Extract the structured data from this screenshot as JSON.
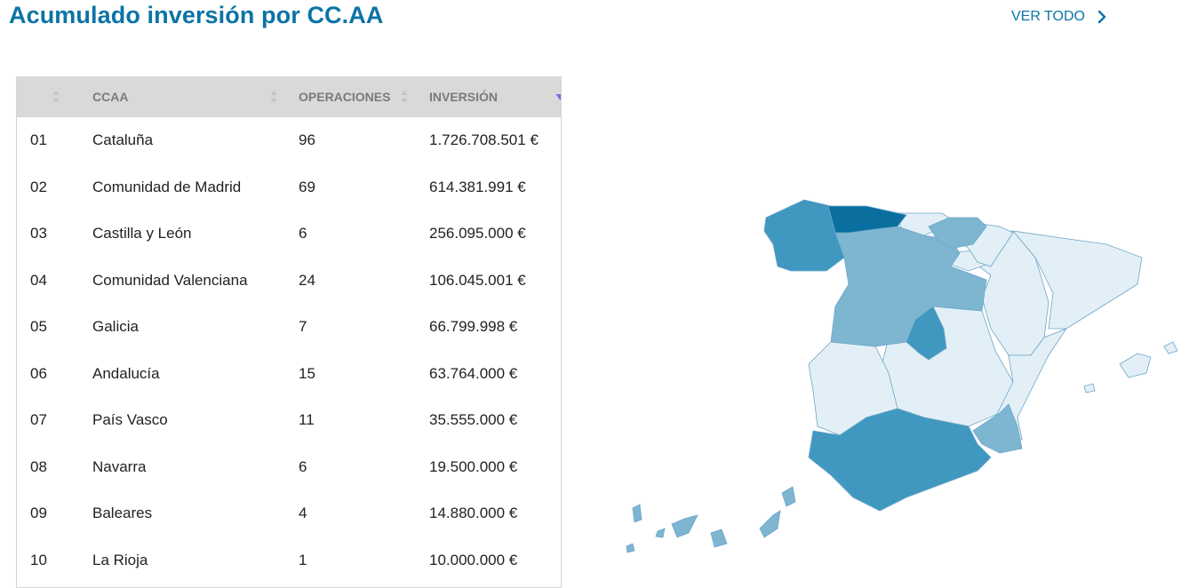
{
  "header": {
    "title": "Acumulado inversión por CC.AA",
    "view_all_label": "VER TODO",
    "view_all_icon": "chevron-right-icon"
  },
  "table": {
    "columns": [
      "",
      "CCAA",
      "OPERACIONES",
      "INVERSIÓN"
    ],
    "sorted_column": "INVERSIÓN",
    "sort_direction": "descending",
    "rows": [
      {
        "rank": "01",
        "ccaa": "Cataluña",
        "operaciones": "96",
        "inversion": "1.726.708.501 €"
      },
      {
        "rank": "02",
        "ccaa": "Comunidad de Madrid",
        "operaciones": "69",
        "inversion": "614.381.991 €"
      },
      {
        "rank": "03",
        "ccaa": "Castilla y León",
        "operaciones": "6",
        "inversion": "256.095.000 €"
      },
      {
        "rank": "04",
        "ccaa": "Comunidad Valenciana",
        "operaciones": "24",
        "inversion": "106.045.001 €"
      },
      {
        "rank": "05",
        "ccaa": "Galicia",
        "operaciones": "7",
        "inversion": "66.799.998 €"
      },
      {
        "rank": "06",
        "ccaa": "Andalucía",
        "operaciones": "15",
        "inversion": "63.764.000 €"
      },
      {
        "rank": "07",
        "ccaa": "País Vasco",
        "operaciones": "11",
        "inversion": "35.555.000 €"
      },
      {
        "rank": "08",
        "ccaa": "Navarra",
        "operaciones": "6",
        "inversion": "19.500.000 €"
      },
      {
        "rank": "09",
        "ccaa": "Baleares",
        "operaciones": "4",
        "inversion": "14.880.000 €"
      },
      {
        "rank": "10",
        "ccaa": "La Rioja",
        "operaciones": "1",
        "inversion": "10.000.000 €"
      }
    ]
  },
  "map": {
    "colors": {
      "darkest": "#0a6f9e",
      "dark": "#4098c0",
      "medium": "#7eb6d2",
      "light": "#e3eff6",
      "accent": "#0b74a6",
      "header_bg": "#d9d9d9"
    }
  }
}
